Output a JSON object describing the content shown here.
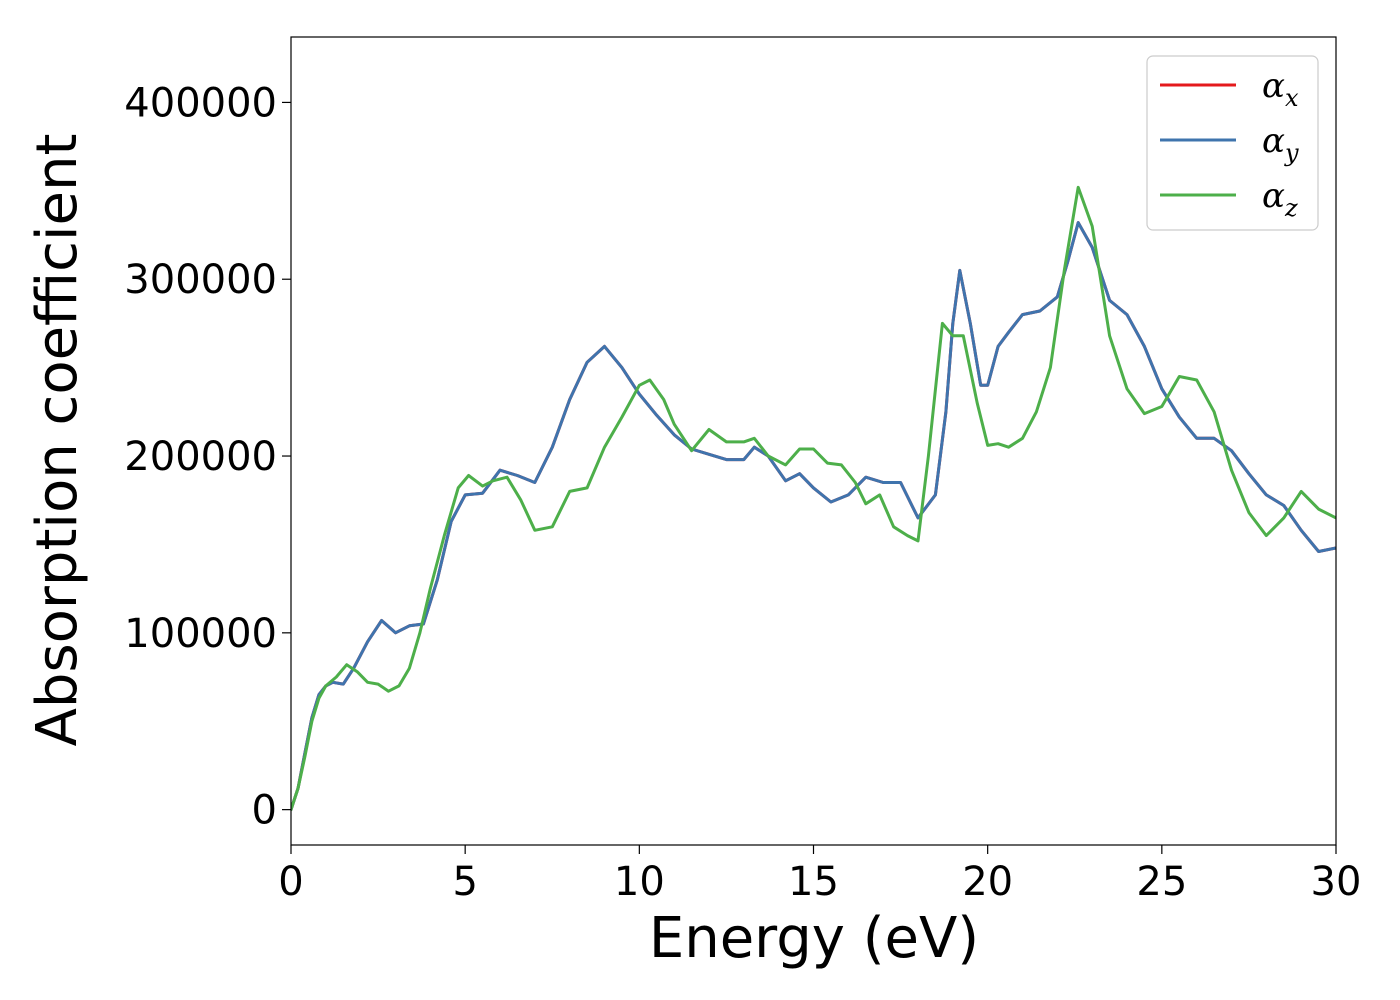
{
  "chart_data": {
    "type": "line",
    "title": "",
    "xlabel": "Energy (eV)",
    "ylabel": "Absorption coefficient",
    "xlim": [
      0,
      30
    ],
    "ylim": [
      -20000,
      437000
    ],
    "xticks": [
      0,
      5,
      10,
      15,
      20,
      25,
      30
    ],
    "yticks": [
      0,
      100000,
      200000,
      300000,
      400000
    ],
    "xtick_labels": [
      "0",
      "5",
      "10",
      "15",
      "20",
      "25",
      "30"
    ],
    "ytick_labels": [
      "0",
      "100000",
      "200000",
      "300000",
      "400000"
    ],
    "grid": false,
    "legend_position": "top-right",
    "series": [
      {
        "name": "α_x",
        "symbol": "α",
        "subscript": "x",
        "color": "#e41a1c",
        "x": [
          0,
          0.2,
          0.4,
          0.6,
          0.8,
          1.0,
          1.2,
          1.5,
          1.8,
          2.2,
          2.6,
          3.0,
          3.4,
          3.8,
          4.2,
          4.6,
          5.0,
          5.5,
          6.0,
          6.5,
          7.0,
          7.5,
          8.0,
          8.5,
          9.0,
          9.5,
          10.0,
          10.5,
          11.0,
          11.5,
          12.0,
          12.5,
          13.0,
          13.3,
          13.7,
          14.2,
          14.6,
          15.0,
          15.5,
          16.0,
          16.5,
          17.0,
          17.5,
          18.0,
          18.5,
          18.8,
          19.0,
          19.2,
          19.5,
          19.8,
          20.0,
          20.3,
          20.6,
          21.0,
          21.5,
          22.0,
          22.3,
          22.6,
          23.0,
          23.5,
          24.0,
          24.5,
          25.0,
          25.5,
          26.0,
          26.5,
          27.0,
          27.5,
          28.0,
          28.5,
          29.0,
          29.5,
          30.0
        ],
        "y": [
          0,
          12000,
          32000,
          52000,
          65000,
          70000,
          72000,
          71000,
          80000,
          95000,
          107000,
          100000,
          104000,
          105000,
          130000,
          163000,
          178000,
          179000,
          192000,
          189000,
          185000,
          205000,
          232000,
          253000,
          262000,
          250000,
          235000,
          223000,
          212000,
          204000,
          201000,
          198000,
          198000,
          205000,
          200000,
          186000,
          190000,
          182000,
          174000,
          178000,
          188000,
          185000,
          185000,
          165000,
          178000,
          225000,
          275000,
          305000,
          275000,
          240000,
          240000,
          262000,
          270000,
          280000,
          282000,
          290000,
          310000,
          332000,
          318000,
          288000,
          280000,
          262000,
          238000,
          222000,
          210000,
          210000,
          203000,
          190000,
          178000,
          172000,
          158000,
          146000,
          148000
        ]
      },
      {
        "name": "α_y",
        "symbol": "α",
        "subscript": "y",
        "color": "#3f74ad",
        "x": [
          0,
          0.2,
          0.4,
          0.6,
          0.8,
          1.0,
          1.2,
          1.5,
          1.8,
          2.2,
          2.6,
          3.0,
          3.4,
          3.8,
          4.2,
          4.6,
          5.0,
          5.5,
          6.0,
          6.5,
          7.0,
          7.5,
          8.0,
          8.5,
          9.0,
          9.5,
          10.0,
          10.5,
          11.0,
          11.5,
          12.0,
          12.5,
          13.0,
          13.3,
          13.7,
          14.2,
          14.6,
          15.0,
          15.5,
          16.0,
          16.5,
          17.0,
          17.5,
          18.0,
          18.5,
          18.8,
          19.0,
          19.2,
          19.5,
          19.8,
          20.0,
          20.3,
          20.6,
          21.0,
          21.5,
          22.0,
          22.3,
          22.6,
          23.0,
          23.5,
          24.0,
          24.5,
          25.0,
          25.5,
          26.0,
          26.5,
          27.0,
          27.5,
          28.0,
          28.5,
          29.0,
          29.5,
          30.0
        ],
        "y": [
          0,
          12000,
          32000,
          52000,
          65000,
          70000,
          72000,
          71000,
          80000,
          95000,
          107000,
          100000,
          104000,
          105000,
          130000,
          163000,
          178000,
          179000,
          192000,
          189000,
          185000,
          205000,
          232000,
          253000,
          262000,
          250000,
          235000,
          223000,
          212000,
          204000,
          201000,
          198000,
          198000,
          205000,
          200000,
          186000,
          190000,
          182000,
          174000,
          178000,
          188000,
          185000,
          185000,
          165000,
          178000,
          225000,
          275000,
          305000,
          275000,
          240000,
          240000,
          262000,
          270000,
          280000,
          282000,
          290000,
          310000,
          332000,
          318000,
          288000,
          280000,
          262000,
          238000,
          222000,
          210000,
          210000,
          203000,
          190000,
          178000,
          172000,
          158000,
          146000,
          148000
        ]
      },
      {
        "name": "α_z",
        "symbol": "α",
        "subscript": "z",
        "color": "#4daf4a",
        "x": [
          0,
          0.2,
          0.4,
          0.6,
          0.8,
          1.0,
          1.3,
          1.6,
          1.9,
          2.2,
          2.5,
          2.8,
          3.1,
          3.4,
          3.7,
          4.0,
          4.4,
          4.8,
          5.1,
          5.5,
          5.8,
          6.2,
          6.6,
          7.0,
          7.5,
          8.0,
          8.5,
          9.0,
          9.5,
          10.0,
          10.3,
          10.7,
          11.0,
          11.5,
          12.0,
          12.5,
          13.0,
          13.3,
          13.7,
          14.2,
          14.6,
          15.0,
          15.4,
          15.8,
          16.2,
          16.5,
          16.9,
          17.3,
          17.7,
          18.0,
          18.3,
          18.7,
          19.0,
          19.3,
          19.7,
          20.0,
          20.3,
          20.6,
          21.0,
          21.4,
          21.8,
          22.2,
          22.6,
          23.0,
          23.5,
          24.0,
          24.5,
          25.0,
          25.5,
          26.0,
          26.5,
          27.0,
          27.5,
          28.0,
          28.5,
          29.0,
          29.5,
          30.0
        ],
        "y": [
          0,
          12000,
          30000,
          50000,
          63000,
          70000,
          75000,
          82000,
          78000,
          72000,
          71000,
          67000,
          70000,
          80000,
          100000,
          125000,
          155000,
          182000,
          189000,
          183000,
          186000,
          188000,
          175000,
          158000,
          160000,
          180000,
          182000,
          205000,
          222000,
          240000,
          243000,
          232000,
          218000,
          203000,
          215000,
          208000,
          208000,
          210000,
          200000,
          195000,
          204000,
          204000,
          196000,
          195000,
          185000,
          173000,
          178000,
          160000,
          155000,
          152000,
          200000,
          275000,
          268000,
          268000,
          230000,
          206000,
          207000,
          205000,
          210000,
          225000,
          250000,
          305000,
          352000,
          330000,
          268000,
          238000,
          224000,
          228000,
          245000,
          243000,
          225000,
          192000,
          168000,
          155000,
          165000,
          180000,
          170000,
          165000
        ]
      }
    ]
  }
}
